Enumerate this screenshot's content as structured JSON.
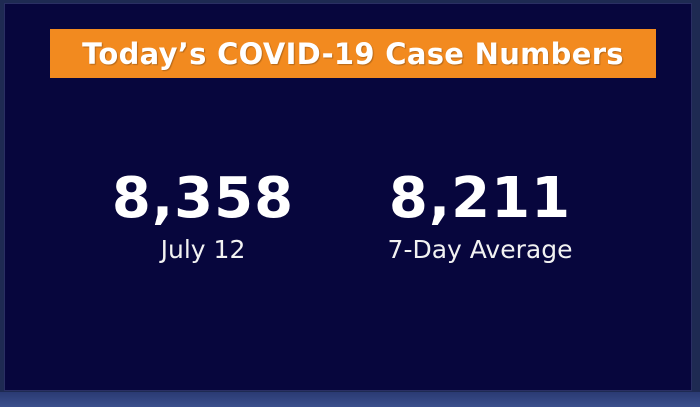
{
  "title": "Today’s COVID-19 Case Numbers",
  "stats": [
    {
      "value": "8,358",
      "label": "July 12"
    },
    {
      "value": "8,211",
      "label": "7-Day Average"
    }
  ],
  "colors": {
    "background": "#07063d",
    "title_bar": "#f28a1f",
    "text": "#ffffff"
  }
}
